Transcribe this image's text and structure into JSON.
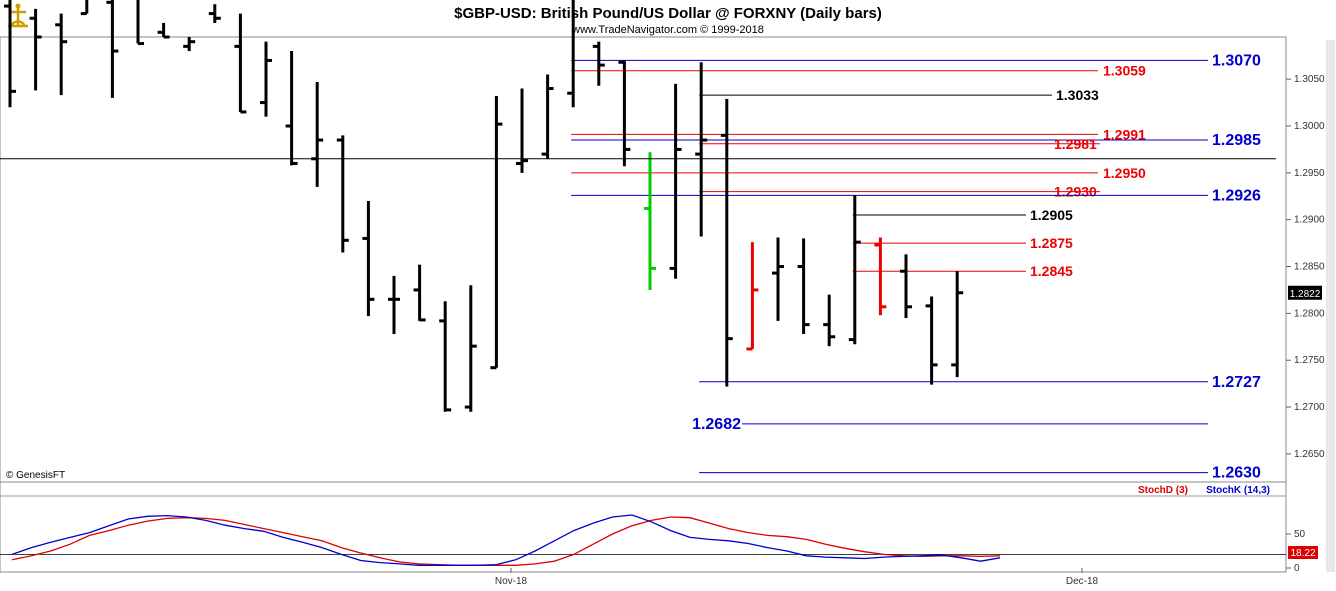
{
  "header": {
    "title": "$GBP-USD:  British Pound/US Dollar @ FORXNY  (Daily bars)",
    "subtitle": "www.TradeNavigator.com © 1999-2018",
    "credit": "© GenesisFT"
  },
  "colors": {
    "bar": "#000000",
    "bar_up_signal": "#00cc00",
    "bar_signal": "#ee0000",
    "level_blue": "#0000cc",
    "level_red": "#ee0000",
    "level_black": "#000000",
    "stoch_d": "#dd0000",
    "stoch_k": "#0000cc"
  },
  "chart_data": [
    {
      "type": "ohlc",
      "title": "$GBP-USD:  British Pound/US Dollar @ FORXNY  (Daily bars)",
      "ylim": [
        1.262,
        1.3095
      ],
      "y_ticks": [
        "1.3050",
        "1.3000",
        "1.2950",
        "1.2900",
        "1.2850",
        "1.2800",
        "1.2750",
        "1.2700",
        "1.2650"
      ],
      "x_labels": [
        "Nov-18",
        "Dec-18"
      ],
      "last_price": "1.2822",
      "crosshair_price": 1.2965,
      "bars": [
        {
          "o": 1.3128,
          "h": 1.3135,
          "l": 1.302,
          "c": 1.3037,
          "col": "black"
        },
        {
          "o": 1.3115,
          "h": 1.3125,
          "l": 1.3038,
          "c": 1.3095,
          "col": "black"
        },
        {
          "o": 1.3108,
          "h": 1.312,
          "l": 1.3033,
          "c": 1.309,
          "col": "black"
        },
        {
          "o": 1.312,
          "h": 1.318,
          "l": 1.312,
          "c": 1.318,
          "col": "black"
        },
        {
          "o": 1.3132,
          "h": 1.314,
          "l": 1.303,
          "c": 1.308,
          "col": "black"
        },
        {
          "o": 1.3175,
          "h": 1.3185,
          "l": 1.3088,
          "c": 1.3088,
          "col": "black"
        },
        {
          "o": 1.31,
          "h": 1.311,
          "l": 1.3095,
          "c": 1.3095,
          "col": "black"
        },
        {
          "o": 1.3085,
          "h": 1.3095,
          "l": 1.308,
          "c": 1.309,
          "col": "black"
        },
        {
          "o": 1.312,
          "h": 1.313,
          "l": 1.311,
          "c": 1.3115,
          "col": "black"
        },
        {
          "o": 1.3085,
          "h": 1.312,
          "l": 1.3015,
          "c": 1.3015,
          "col": "black"
        },
        {
          "o": 1.3025,
          "h": 1.309,
          "l": 1.301,
          "c": 1.307,
          "col": "black"
        },
        {
          "o": 1.3,
          "h": 1.308,
          "l": 1.2958,
          "c": 1.296,
          "col": "black"
        },
        {
          "o": 1.2965,
          "h": 1.3047,
          "l": 1.2935,
          "c": 1.2985,
          "col": "black"
        },
        {
          "o": 1.2985,
          "h": 1.299,
          "l": 1.2865,
          "c": 1.2878,
          "col": "black"
        },
        {
          "o": 1.288,
          "h": 1.292,
          "l": 1.2797,
          "c": 1.2815,
          "col": "black"
        },
        {
          "o": 1.2815,
          "h": 1.284,
          "l": 1.2778,
          "c": 1.2815,
          "col": "black"
        },
        {
          "o": 1.2825,
          "h": 1.2852,
          "l": 1.2792,
          "c": 1.2793,
          "col": "black"
        },
        {
          "o": 1.2792,
          "h": 1.2813,
          "l": 1.2695,
          "c": 1.2697,
          "col": "black"
        },
        {
          "o": 1.27,
          "h": 1.283,
          "l": 1.2695,
          "c": 1.2765,
          "col": "black"
        },
        {
          "o": 1.2742,
          "h": 1.3032,
          "l": 1.2742,
          "c": 1.3002,
          "col": "black"
        },
        {
          "o": 1.296,
          "h": 1.304,
          "l": 1.295,
          "c": 1.2963,
          "col": "black"
        },
        {
          "o": 1.297,
          "h": 1.3055,
          "l": 1.2965,
          "c": 1.304,
          "col": "black"
        },
        {
          "o": 1.3035,
          "h": 1.319,
          "l": 1.302,
          "c": 1.315,
          "col": "black"
        },
        {
          "o": 1.3085,
          "h": 1.309,
          "l": 1.3043,
          "c": 1.3065,
          "col": "black"
        },
        {
          "o": 1.3068,
          "h": 1.307,
          "l": 1.2957,
          "c": 1.2975,
          "col": "black"
        },
        {
          "o": 1.2912,
          "h": 1.2972,
          "l": 1.2825,
          "c": 1.2848,
          "col": "up"
        },
        {
          "o": 1.2848,
          "h": 1.3045,
          "l": 1.2837,
          "c": 1.2975,
          "col": "black"
        },
        {
          "o": 1.297,
          "h": 1.3068,
          "l": 1.2882,
          "c": 1.2985,
          "col": "black"
        },
        {
          "o": 1.299,
          "h": 1.3029,
          "l": 1.2722,
          "c": 1.2773,
          "col": "black"
        },
        {
          "o": 1.2762,
          "h": 1.2876,
          "l": 1.2762,
          "c": 1.2825,
          "col": "signal"
        },
        {
          "o": 1.2843,
          "h": 1.2881,
          "l": 1.2792,
          "c": 1.285,
          "col": "black"
        },
        {
          "o": 1.285,
          "h": 1.288,
          "l": 1.2778,
          "c": 1.2788,
          "col": "black"
        },
        {
          "o": 1.2788,
          "h": 1.282,
          "l": 1.2765,
          "c": 1.2775,
          "col": "black"
        },
        {
          "o": 1.2772,
          "h": 1.2926,
          "l": 1.2767,
          "c": 1.2876,
          "col": "black"
        },
        {
          "o": 1.2873,
          "h": 1.2881,
          "l": 1.2798,
          "c": 1.2807,
          "col": "signal"
        },
        {
          "o": 1.2845,
          "h": 1.2863,
          "l": 1.2795,
          "c": 1.2807,
          "col": "black"
        },
        {
          "o": 1.2808,
          "h": 1.2818,
          "l": 1.2724,
          "c": 1.2745,
          "col": "black"
        },
        {
          "o": 1.2745,
          "h": 1.2845,
          "l": 1.2732,
          "c": 1.2822,
          "col": "black"
        }
      ],
      "levels": [
        {
          "label": "1.3070",
          "value": 1.307,
          "color": "blue",
          "from_bar": 22
        },
        {
          "label": "1.3059",
          "value": 1.3059,
          "color": "red",
          "from_bar": 22
        },
        {
          "label": "1.3033",
          "value": 1.3033,
          "color": "black",
          "from_bar": 27
        },
        {
          "label": "1.2991",
          "value": 1.2991,
          "color": "red",
          "from_bar": 22
        },
        {
          "label": "1.2985",
          "value": 1.2985,
          "color": "blue",
          "from_bar": 22
        },
        {
          "label": "1.2981",
          "value": 1.2981,
          "color": "red",
          "from_bar": 27
        },
        {
          "label": "1.2950",
          "value": 1.295,
          "color": "red",
          "from_bar": 22
        },
        {
          "label": "1.2930",
          "value": 1.293,
          "color": "red",
          "from_bar": 27
        },
        {
          "label": "1.2926",
          "value": 1.2926,
          "color": "blue",
          "from_bar": 22
        },
        {
          "label": "1.2905",
          "value": 1.2905,
          "color": "black",
          "from_bar": 33
        },
        {
          "label": "1.2875",
          "value": 1.2875,
          "color": "red",
          "from_bar": 33
        },
        {
          "label": "1.2845",
          "value": 1.2845,
          "color": "red",
          "from_bar": 33
        },
        {
          "label": "1.2727",
          "value": 1.2727,
          "color": "blue",
          "from_bar": 27
        },
        {
          "label": "1.2682",
          "value": 1.2682,
          "color": "blue",
          "from_bar": 27
        },
        {
          "label": "1.2630",
          "value": 1.263,
          "color": "blue",
          "from_bar": 27
        }
      ]
    },
    {
      "type": "line",
      "ylim": [
        0,
        100
      ],
      "y_ticks": [
        "50",
        "0"
      ],
      "last_value": "18.22",
      "series": [
        {
          "name": "StochD (3)",
          "color": "red",
          "values": [
            12,
            18,
            25,
            35,
            48,
            55,
            63,
            69,
            73,
            74,
            73,
            70,
            64,
            58,
            52,
            46,
            40,
            30,
            22,
            15,
            9,
            6,
            5,
            4,
            4,
            4,
            4,
            6,
            10,
            20,
            35,
            50,
            62,
            70,
            75,
            74,
            66,
            58,
            52,
            48,
            46,
            42,
            35,
            29,
            24,
            20,
            18,
            17,
            18,
            18,
            17,
            18
          ]
        },
        {
          "name": "StochK (14,3)",
          "color": "blue",
          "values": [
            20,
            30,
            38,
            45,
            52,
            62,
            72,
            76,
            77,
            75,
            70,
            63,
            58,
            54,
            45,
            38,
            30,
            20,
            11,
            8,
            6,
            4,
            4,
            4,
            4,
            5,
            12,
            25,
            40,
            55,
            66,
            75,
            78,
            68,
            55,
            45,
            42,
            40,
            36,
            30,
            25,
            18,
            16,
            15,
            14,
            16,
            17,
            18,
            19,
            15,
            10,
            15
          ]
        }
      ],
      "legend": [
        "StochD (3)",
        "StochK (14,3)"
      ],
      "x_labels": [
        "Nov-18",
        "Dec-18"
      ]
    }
  ]
}
